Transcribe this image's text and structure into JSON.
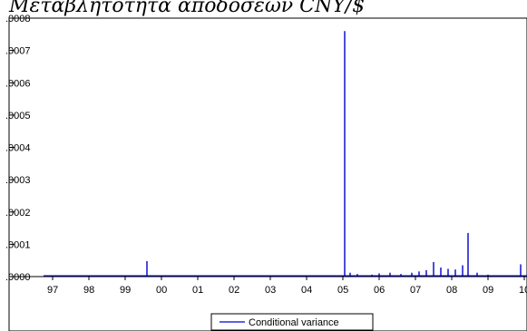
{
  "page_title": "Μεταβλητότητα αποδόσεων CNY/$",
  "chart_data": {
    "type": "line",
    "title": "Μεταβλητότητα αποδόσεων CNY/$",
    "xlabel": "",
    "ylabel": "",
    "x_tick_labels": [
      "97",
      "98",
      "99",
      "00",
      "01",
      "02",
      "03",
      "04",
      "05",
      "06",
      "07",
      "08",
      "09",
      "10"
    ],
    "y_tick_labels": [
      ".0000",
      ".0001",
      ".0002",
      ".0003",
      ".0004",
      ".0005",
      ".0006",
      ".0007",
      ".0008"
    ],
    "ylim": [
      0,
      0.0008
    ],
    "xlim": [
      1997.0,
      2010.0
    ],
    "grid": false,
    "legend_position": "bottom-center",
    "series": [
      {
        "name": "Conditional variance",
        "color": "#0000cc",
        "points": [
          [
            1999.6,
            4.8e-05
          ],
          [
            2005.05,
            0.00076
          ],
          [
            2005.2,
            1.2e-05
          ],
          [
            2005.4,
            8e-06
          ],
          [
            2005.8,
            6e-06
          ],
          [
            2006.0,
            1e-05
          ],
          [
            2006.3,
            1.2e-05
          ],
          [
            2006.6,
            8e-06
          ],
          [
            2006.9,
            1.2e-05
          ],
          [
            2007.1,
            1.6e-05
          ],
          [
            2007.3,
            2e-05
          ],
          [
            2007.5,
            4.5e-05
          ],
          [
            2007.7,
            2.8e-05
          ],
          [
            2007.9,
            2.4e-05
          ],
          [
            2008.1,
            2.2e-05
          ],
          [
            2008.3,
            3.5e-05
          ],
          [
            2008.45,
            0.000135
          ],
          [
            2008.7,
            1.2e-05
          ],
          [
            2009.0,
            6e-06
          ],
          [
            2009.5,
            4e-06
          ],
          [
            2009.9,
            3.8e-05
          ]
        ]
      }
    ]
  }
}
